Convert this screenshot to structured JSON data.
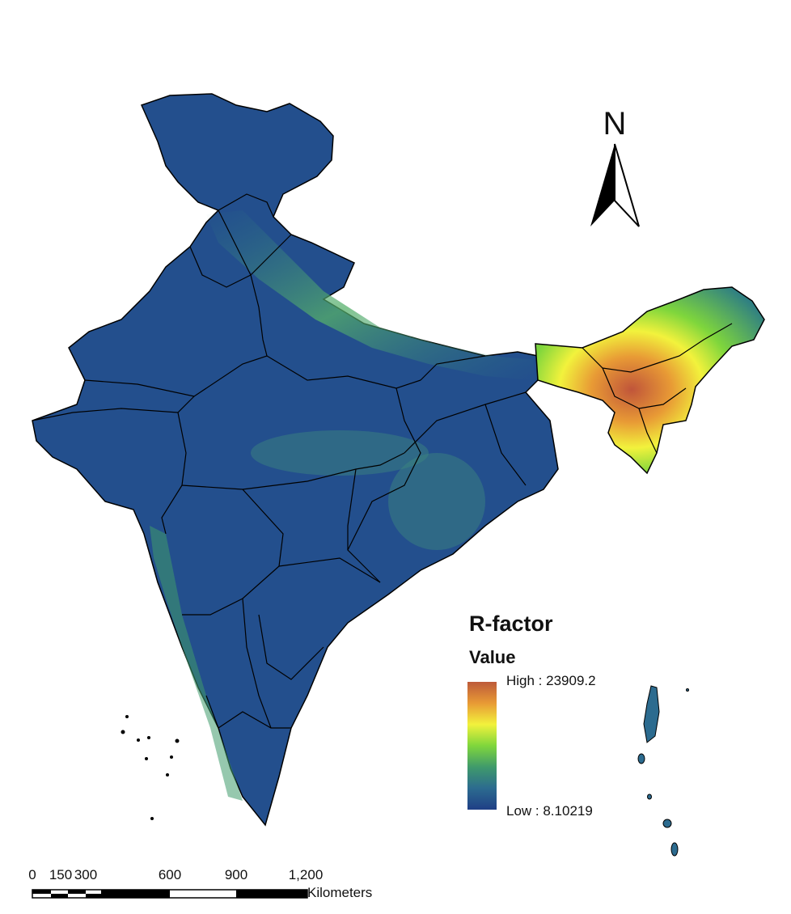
{
  "north_arrow": {
    "letter": "N"
  },
  "legend": {
    "title": "R-factor",
    "subtitle": "Value",
    "high_label": "High : 23909.2",
    "low_label": "Low : 8.10219",
    "high_value": 23909.2,
    "low_value": 8.10219,
    "colors": [
      "#1f3f86",
      "#2c6b8f",
      "#3f9a6b",
      "#7fd63c",
      "#f2f23c",
      "#e89a35",
      "#bd5a3a"
    ]
  },
  "scale_bar": {
    "ticks": [
      "0",
      "150",
      "300",
      "600",
      "900",
      "1,200"
    ],
    "unit": "Kilometers"
  }
}
